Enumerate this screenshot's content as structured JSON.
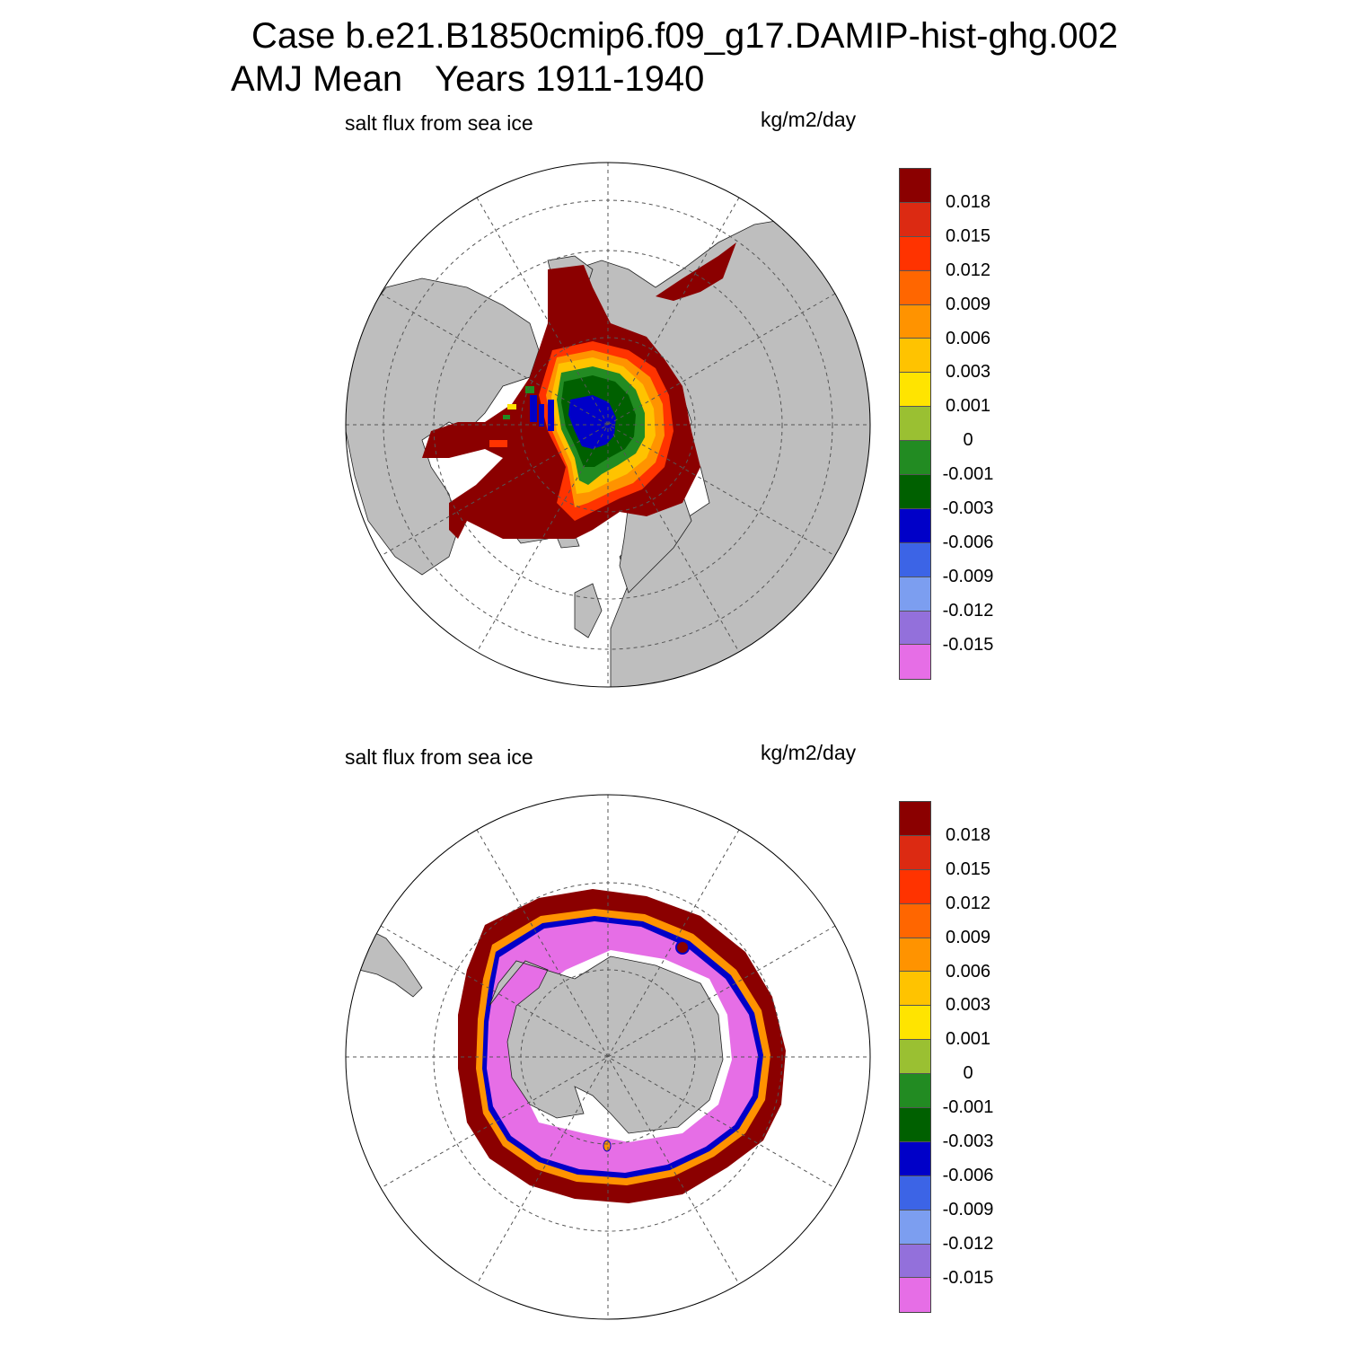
{
  "title": {
    "line1": "Case b.e21.B1850cmip6.f09_g17.DAMIP-hist-ghg.002",
    "season": "AMJ Mean",
    "years": "Years 1911-1940"
  },
  "panels": [
    {
      "name": "north-polar-panel",
      "variable": "salt flux from sea ice",
      "units": "kg/m2/day",
      "hemisphere": "north"
    },
    {
      "name": "south-polar-panel",
      "variable": "salt flux from sea ice",
      "units": "kg/m2/day",
      "hemisphere": "south"
    }
  ],
  "colorbar": {
    "tick_labels": [
      "0.018",
      "0.015",
      "0.012",
      "0.009",
      "0.006",
      "0.003",
      "0.001",
      "0",
      "-0.001",
      "-0.003",
      "-0.006",
      "-0.009",
      "-0.012",
      "-0.015"
    ],
    "colors": [
      "#8b0000",
      "#dc2a12",
      "#ff3300",
      "#ff6600",
      "#ff9300",
      "#ffc300",
      "#ffe400",
      "#9ac032",
      "#228b22",
      "#006000",
      "#0000c8",
      "#3c64e6",
      "#7c9ef0",
      "#9370db",
      "#e66ee6"
    ]
  },
  "colors": {
    "land": "#bebebe",
    "ocean": "#ffffff",
    "grid": "#555555"
  }
}
